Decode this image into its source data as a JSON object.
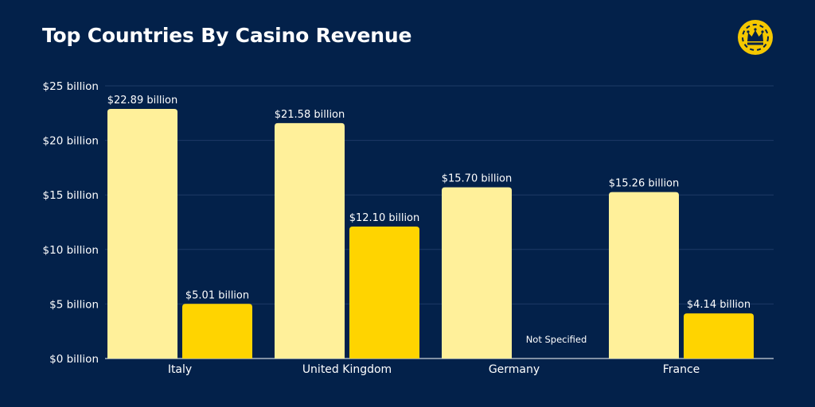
{
  "title": "Top Countries By Casino Revenue",
  "logo": {
    "icon": "crown-chip-icon",
    "colors": {
      "chip": "#f5c800",
      "crown": "#03214a"
    }
  },
  "colors": {
    "background": "#03214a",
    "series_a": "#fff09a",
    "series_b": "#ffd400",
    "gridline": "#1e3a66",
    "text": "#ffffff"
  },
  "chart_data": {
    "type": "bar",
    "title": "Top Countries By Casino Revenue",
    "categories": [
      "Italy",
      "United Kingdom",
      "Germany",
      "France"
    ],
    "series": [
      {
        "values": [
          22.89,
          21.58,
          15.7,
          15.26
        ],
        "labels": [
          "$22.89 billion",
          "$21.58 billion",
          "$15.70 billion",
          "$15.26 billion"
        ]
      },
      {
        "values": [
          5.01,
          12.1,
          null,
          4.14
        ],
        "labels": [
          "$5.01 billion",
          "$12.10 billion",
          "Not Specified",
          "$4.14 billion"
        ]
      }
    ],
    "ylim": [
      0,
      25
    ],
    "yticks": [
      0,
      5,
      10,
      15,
      20,
      25
    ],
    "ytick_labels": [
      "$0 billion",
      "$5 billion",
      "$10 billion",
      "$15 billion",
      "$20 billion",
      "$25 billion"
    ],
    "xlabel": "",
    "ylabel": "",
    "grid": true,
    "legend": "none"
  }
}
